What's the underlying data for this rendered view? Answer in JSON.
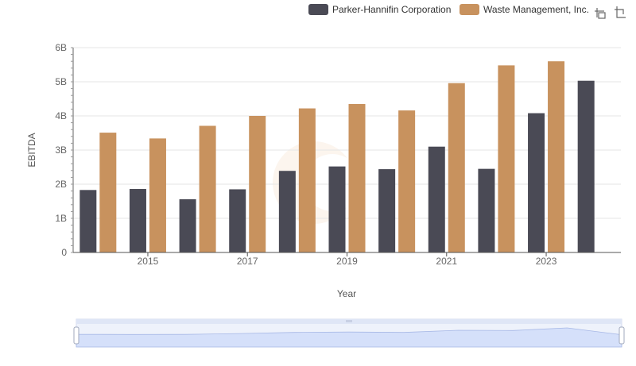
{
  "chart_data": {
    "type": "bar",
    "xlabel": "Year",
    "ylabel": "EBITDA",
    "years": [
      2014,
      2015,
      2016,
      2017,
      2018,
      2019,
      2020,
      2021,
      2022,
      2023,
      2024
    ],
    "xtick_labels": [
      "2015",
      "2017",
      "2019",
      "2021",
      "2023"
    ],
    "ytick_labels": [
      "0",
      "1B",
      "2B",
      "3B",
      "4B",
      "5B",
      "6B"
    ],
    "ylim": [
      0,
      6000000000
    ],
    "series": [
      {
        "name": "Parker-Hannifin Corporation",
        "color": "#4a4a55",
        "values": [
          1830000000,
          1860000000,
          1560000000,
          1850000000,
          2390000000,
          2520000000,
          2440000000,
          3100000000,
          2450000000,
          4080000000,
          5030000000
        ]
      },
      {
        "name": "Waste Management, Inc.",
        "color": "#c8925e",
        "values": [
          3510000000,
          3340000000,
          3710000000,
          4000000000,
          4220000000,
          4350000000,
          4160000000,
          4960000000,
          5480000000,
          5600000000,
          null
        ]
      }
    ],
    "grid": true,
    "legend_position": "top-right"
  },
  "toolbar": {
    "zoom_icon": "zoom-select-icon",
    "reset_icon": "zoom-reset-icon"
  }
}
